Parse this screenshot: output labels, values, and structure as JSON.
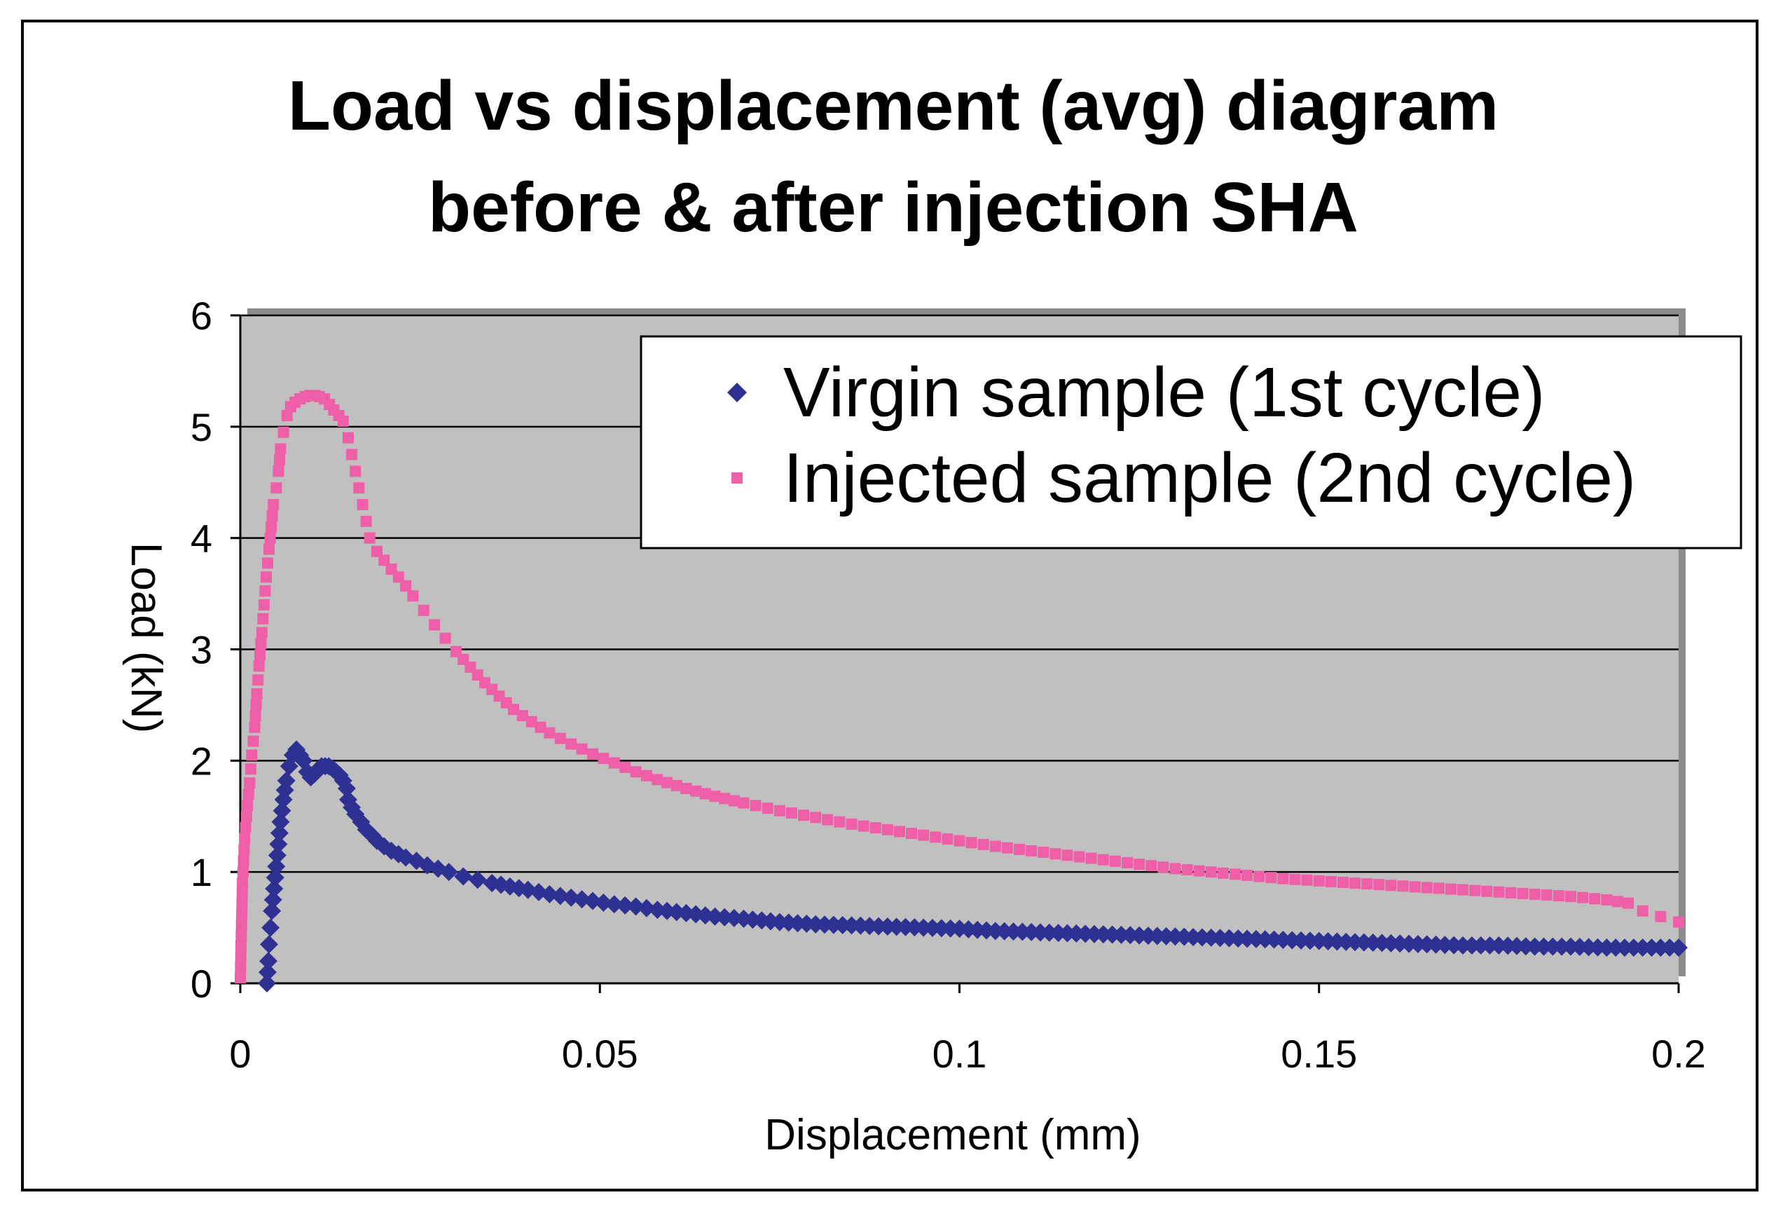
{
  "chart_data": {
    "type": "scatter",
    "title_lines": [
      "Load vs displacement (avg) diagram",
      "before & after injection SHA"
    ],
    "xlabel": "Displacement (mm)",
    "ylabel": "Load (kN)",
    "xlim": [
      0,
      0.2
    ],
    "ylim": [
      0,
      6
    ],
    "x_ticks": [
      "0",
      "0.05",
      "0.1",
      "0.15",
      "0.2"
    ],
    "y_ticks": [
      "0",
      "1",
      "2",
      "3",
      "4",
      "5",
      "6"
    ],
    "grid": true,
    "legend_position": "top-right",
    "plot_background": "#c0c0c0",
    "series": [
      {
        "name": "Virgin sample (1st cycle)",
        "marker": "diamond",
        "color": "#2e3192",
        "points": [
          [
            0.0037,
            0.0
          ],
          [
            0.0038,
            0.1
          ],
          [
            0.0039,
            0.2
          ],
          [
            0.004,
            0.35
          ],
          [
            0.0042,
            0.5
          ],
          [
            0.0044,
            0.65
          ],
          [
            0.0047,
            0.85
          ],
          [
            0.005,
            1.05
          ],
          [
            0.0053,
            1.25
          ],
          [
            0.0056,
            1.45
          ],
          [
            0.006,
            1.65
          ],
          [
            0.0064,
            1.82
          ],
          [
            0.0068,
            1.95
          ],
          [
            0.0073,
            2.05
          ],
          [
            0.0078,
            2.1
          ],
          [
            0.0083,
            2.05
          ],
          [
            0.0088,
            2.0
          ],
          [
            0.0093,
            1.9
          ],
          [
            0.0098,
            1.85
          ],
          [
            0.0103,
            1.88
          ],
          [
            0.0108,
            1.92
          ],
          [
            0.0113,
            1.95
          ],
          [
            0.0118,
            1.95
          ],
          [
            0.0123,
            1.95
          ],
          [
            0.0128,
            1.93
          ],
          [
            0.0133,
            1.9
          ],
          [
            0.0138,
            1.87
          ],
          [
            0.0143,
            1.82
          ],
          [
            0.0148,
            1.75
          ],
          [
            0.015,
            1.65
          ],
          [
            0.0155,
            1.58
          ],
          [
            0.016,
            1.52
          ],
          [
            0.0168,
            1.45
          ],
          [
            0.0175,
            1.38
          ],
          [
            0.0183,
            1.33
          ],
          [
            0.019,
            1.28
          ],
          [
            0.02,
            1.23
          ],
          [
            0.021,
            1.19
          ],
          [
            0.022,
            1.16
          ],
          [
            0.023,
            1.13
          ],
          [
            0.0245,
            1.1
          ],
          [
            0.026,
            1.06
          ],
          [
            0.0275,
            1.03
          ],
          [
            0.029,
            1.0
          ],
          [
            0.031,
            0.96
          ],
          [
            0.033,
            0.93
          ],
          [
            0.035,
            0.9
          ],
          [
            0.0375,
            0.87
          ],
          [
            0.04,
            0.84
          ],
          [
            0.043,
            0.8
          ],
          [
            0.046,
            0.77
          ],
          [
            0.049,
            0.74
          ],
          [
            0.052,
            0.71
          ],
          [
            0.055,
            0.69
          ],
          [
            0.058,
            0.66
          ],
          [
            0.062,
            0.63
          ],
          [
            0.066,
            0.6
          ],
          [
            0.07,
            0.58
          ],
          [
            0.075,
            0.55
          ],
          [
            0.08,
            0.53
          ],
          [
            0.085,
            0.52
          ],
          [
            0.09,
            0.51
          ],
          [
            0.095,
            0.5
          ],
          [
            0.1,
            0.49
          ],
          [
            0.105,
            0.47
          ],
          [
            0.11,
            0.46
          ],
          [
            0.115,
            0.45
          ],
          [
            0.12,
            0.44
          ],
          [
            0.125,
            0.43
          ],
          [
            0.13,
            0.42
          ],
          [
            0.135,
            0.41
          ],
          [
            0.14,
            0.4
          ],
          [
            0.145,
            0.39
          ],
          [
            0.15,
            0.38
          ],
          [
            0.155,
            0.37
          ],
          [
            0.16,
            0.36
          ],
          [
            0.165,
            0.35
          ],
          [
            0.17,
            0.34
          ],
          [
            0.175,
            0.34
          ],
          [
            0.18,
            0.33
          ],
          [
            0.185,
            0.33
          ],
          [
            0.19,
            0.32
          ],
          [
            0.195,
            0.32
          ],
          [
            0.2,
            0.32
          ]
        ]
      },
      {
        "name": "Injected sample (2nd cycle)",
        "marker": "square",
        "color": "#ee5fa7",
        "points": [
          [
            0.0,
            0.05
          ],
          [
            0.0003,
            0.9
          ],
          [
            0.0006,
            1.3
          ],
          [
            0.001,
            1.6
          ],
          [
            0.0013,
            1.8
          ],
          [
            0.0016,
            2.05
          ],
          [
            0.002,
            2.3
          ],
          [
            0.0023,
            2.6
          ],
          [
            0.0026,
            2.85
          ],
          [
            0.003,
            3.15
          ],
          [
            0.0033,
            3.4
          ],
          [
            0.0036,
            3.65
          ],
          [
            0.004,
            3.9
          ],
          [
            0.0043,
            4.1
          ],
          [
            0.0046,
            4.3
          ],
          [
            0.005,
            4.45
          ],
          [
            0.0053,
            4.6
          ],
          [
            0.0056,
            4.8
          ],
          [
            0.006,
            4.95
          ],
          [
            0.0065,
            5.1
          ],
          [
            0.007,
            5.18
          ],
          [
            0.0076,
            5.22
          ],
          [
            0.0083,
            5.25
          ],
          [
            0.009,
            5.27
          ],
          [
            0.0097,
            5.28
          ],
          [
            0.0104,
            5.28
          ],
          [
            0.011,
            5.27
          ],
          [
            0.0117,
            5.25
          ],
          [
            0.0124,
            5.2
          ],
          [
            0.013,
            5.15
          ],
          [
            0.0137,
            5.1
          ],
          [
            0.0143,
            5.05
          ],
          [
            0.015,
            4.9
          ],
          [
            0.0155,
            4.75
          ],
          [
            0.016,
            4.6
          ],
          [
            0.0165,
            4.45
          ],
          [
            0.017,
            4.3
          ],
          [
            0.0175,
            4.15
          ],
          [
            0.018,
            4.0
          ],
          [
            0.019,
            3.88
          ],
          [
            0.02,
            3.8
          ],
          [
            0.021,
            3.72
          ],
          [
            0.022,
            3.65
          ],
          [
            0.023,
            3.57
          ],
          [
            0.024,
            3.48
          ],
          [
            0.0255,
            3.35
          ],
          [
            0.027,
            3.22
          ],
          [
            0.0285,
            3.1
          ],
          [
            0.03,
            2.98
          ],
          [
            0.032,
            2.84
          ],
          [
            0.034,
            2.7
          ],
          [
            0.036,
            2.58
          ],
          [
            0.038,
            2.46
          ],
          [
            0.0405,
            2.35
          ],
          [
            0.043,
            2.25
          ],
          [
            0.046,
            2.15
          ],
          [
            0.049,
            2.06
          ],
          [
            0.052,
            1.98
          ],
          [
            0.055,
            1.9
          ],
          [
            0.058,
            1.83
          ],
          [
            0.062,
            1.75
          ],
          [
            0.066,
            1.68
          ],
          [
            0.07,
            1.62
          ],
          [
            0.075,
            1.55
          ],
          [
            0.08,
            1.49
          ],
          [
            0.085,
            1.43
          ],
          [
            0.09,
            1.38
          ],
          [
            0.095,
            1.33
          ],
          [
            0.1,
            1.28
          ],
          [
            0.105,
            1.23
          ],
          [
            0.11,
            1.19
          ],
          [
            0.115,
            1.15
          ],
          [
            0.12,
            1.11
          ],
          [
            0.125,
            1.07
          ],
          [
            0.13,
            1.03
          ],
          [
            0.135,
            1.0
          ],
          [
            0.14,
            0.97
          ],
          [
            0.145,
            0.94
          ],
          [
            0.15,
            0.92
          ],
          [
            0.155,
            0.9
          ],
          [
            0.16,
            0.88
          ],
          [
            0.165,
            0.86
          ],
          [
            0.17,
            0.84
          ],
          [
            0.175,
            0.82
          ],
          [
            0.18,
            0.8
          ],
          [
            0.185,
            0.78
          ],
          [
            0.19,
            0.75
          ],
          [
            0.193,
            0.72
          ],
          [
            0.195,
            0.65
          ],
          [
            0.1975,
            0.6
          ],
          [
            0.2,
            0.55
          ]
        ]
      }
    ]
  }
}
